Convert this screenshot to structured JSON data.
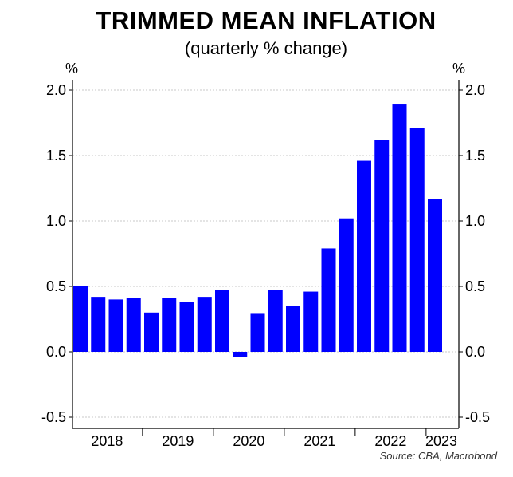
{
  "title": "TRIMMED MEAN INFLATION",
  "subtitle": "(quarterly % change)",
  "source": "Source: CBA, Macrobond",
  "unit_left": "%",
  "unit_right": "%",
  "colors": {
    "bar": "#0000ff",
    "grid": "#c8c8c8",
    "axis": "#000000"
  },
  "chart_data": {
    "type": "bar",
    "title": "TRIMMED MEAN INFLATION",
    "subtitle": "(quarterly % change)",
    "ylabel": "%",
    "ylim": [
      -0.5,
      2.0
    ],
    "yticks": [
      -0.5,
      0.0,
      0.5,
      1.0,
      1.5,
      2.0
    ],
    "ytick_labels": [
      "-0.5",
      "0.0",
      "0.5",
      "1.0",
      "1.5",
      "2.0"
    ],
    "grid": true,
    "x_year_labels": [
      "2018",
      "2019",
      "2020",
      "2021",
      "2022",
      "2023"
    ],
    "categories": [
      "2018 Q1",
      "2018 Q2",
      "2018 Q3",
      "2018 Q4",
      "2019 Q1",
      "2019 Q2",
      "2019 Q3",
      "2019 Q4",
      "2020 Q1",
      "2020 Q2",
      "2020 Q3",
      "2020 Q4",
      "2021 Q1",
      "2021 Q2",
      "2021 Q3",
      "2021 Q4",
      "2022 Q1",
      "2022 Q2",
      "2022 Q3",
      "2022 Q4",
      "2023 Q1"
    ],
    "values": [
      0.5,
      0.42,
      0.4,
      0.41,
      0.3,
      0.41,
      0.38,
      0.42,
      0.47,
      -0.04,
      0.29,
      0.47,
      0.35,
      0.46,
      0.79,
      1.02,
      1.46,
      1.62,
      1.89,
      1.71,
      1.17
    ]
  }
}
